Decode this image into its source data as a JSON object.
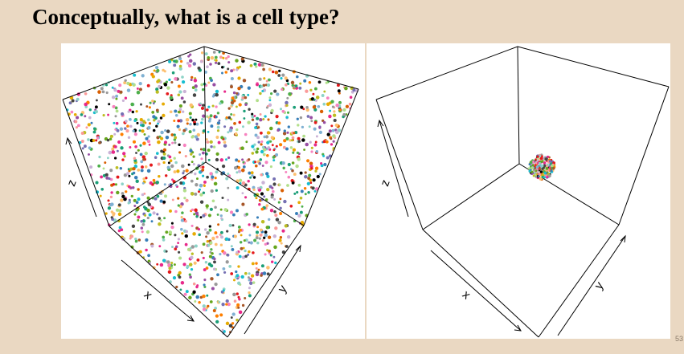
{
  "slide": {
    "title": "Conceptually, what is a cell type?",
    "slide_number": "53",
    "background_color": "#ead8c2"
  },
  "panels": [
    {
      "id": "left",
      "content": "scattered points filling whole cube",
      "axes": {
        "x": "x",
        "y": "y",
        "z": "z"
      }
    },
    {
      "id": "right",
      "content": "tight cluster of points near far corner",
      "axes": {
        "x": "x",
        "y": "y",
        "z": "z"
      }
    }
  ],
  "palette": [
    "#e41a1c",
    "#377eb8",
    "#4daf4a",
    "#984ea3",
    "#ff7f00",
    "#a65628",
    "#f781bf",
    "#999999",
    "#1b9e77",
    "#d95f02",
    "#7570b3",
    "#e7298a",
    "#66a61e",
    "#e6ab02",
    "#000000",
    "#444444",
    "#17becf",
    "#bcbd22",
    "#fdbf6f",
    "#cab2d6",
    "#b2df8a",
    "#fb9a99",
    "#8dd3c7",
    "#80b1d3"
  ]
}
